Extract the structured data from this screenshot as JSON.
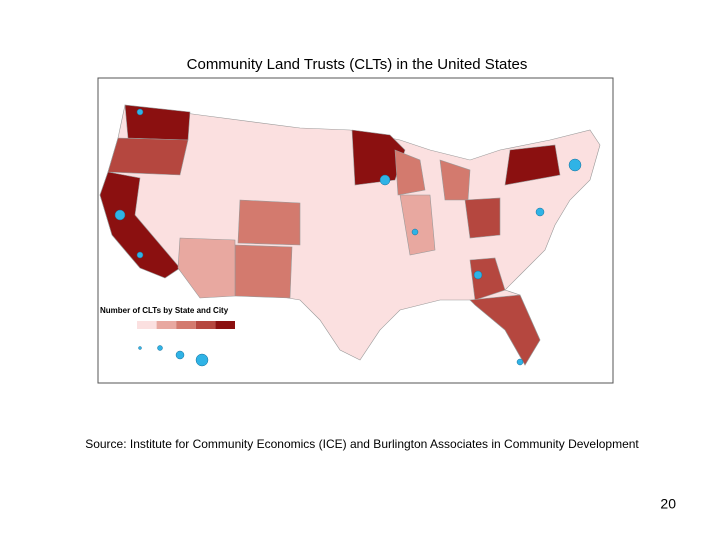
{
  "title": "Community Land Trusts (CLTs) in the United States",
  "legend": {
    "title": "Number of CLTs by State and City",
    "colors": [
      "#fbe0e0",
      "#e8a8a0",
      "#d37a6e",
      "#b5473f",
      "#8b1010"
    ]
  },
  "source": "Source: Institute for Community Economics (ICE) and Burlington Associates in Community Development",
  "page_number": "20"
}
